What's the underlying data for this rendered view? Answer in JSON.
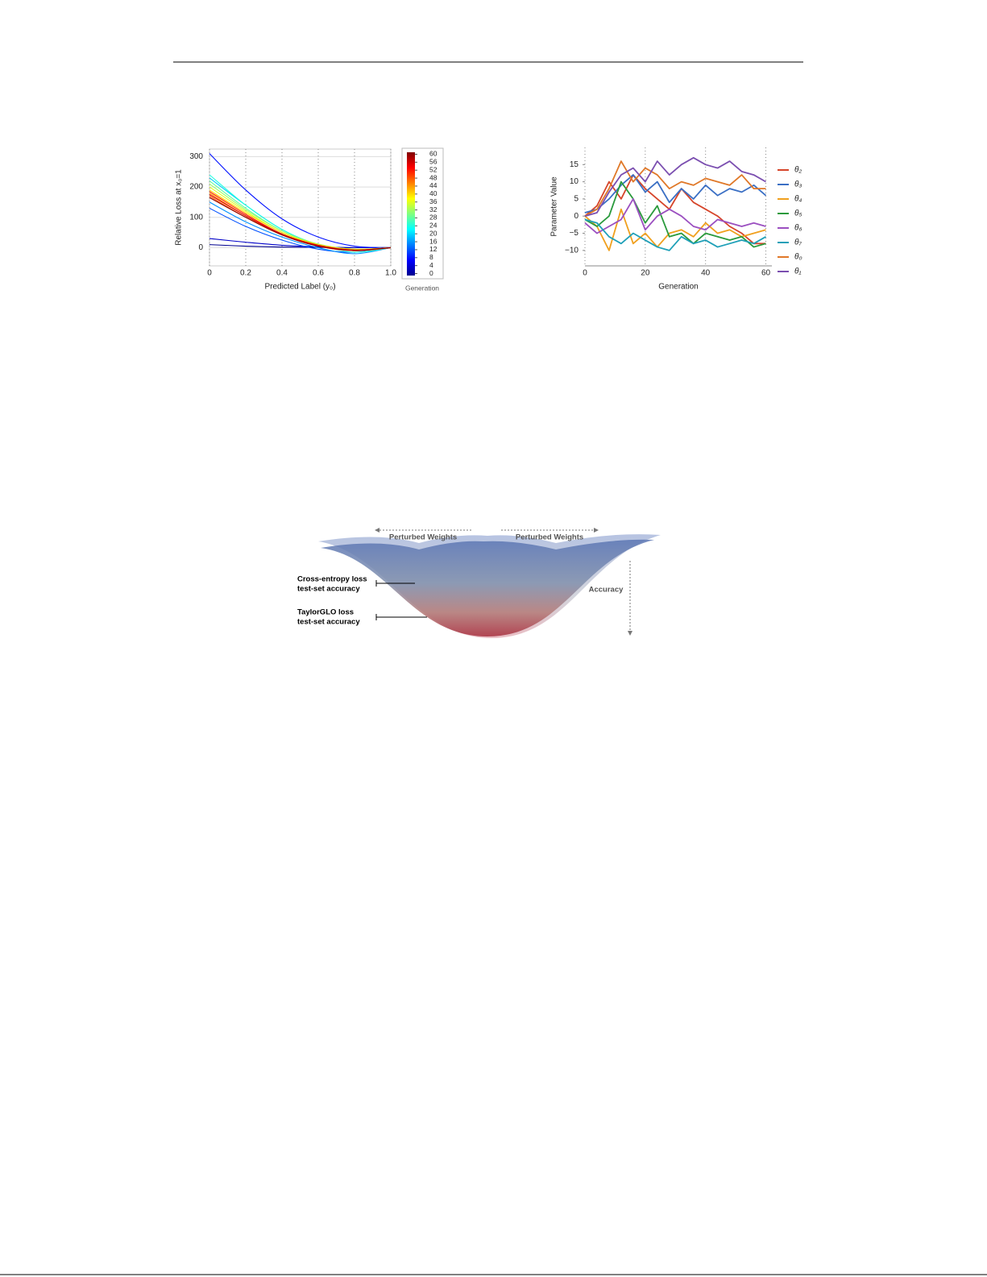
{
  "chart_data": [
    {
      "type": "line",
      "smooth": true,
      "xlabel": "Predicted Label (y₀)",
      "ylabel": "Relative Loss at x₀=1",
      "x": [
        0,
        0.2,
        0.4,
        0.6,
        0.8,
        1.0
      ],
      "xlim": [
        0,
        1.0
      ],
      "xticks": [
        0,
        0.2,
        0.4,
        0.6,
        0.8,
        {
          "value": 1.0,
          "label": "1.0"
        }
      ],
      "ylim": [
        -60,
        325
      ],
      "yticks": [
        0,
        100,
        200,
        300
      ],
      "xgrid": true,
      "ygrid": true,
      "colorbar": {
        "label": "Generation",
        "clim": [
          -1,
          61
        ],
        "ticks": [
          0,
          4,
          8,
          12,
          16,
          20,
          24,
          28,
          32,
          36,
          40,
          44,
          48,
          52,
          56,
          60
        ]
      },
      "series": [
        {
          "color": "#00008f",
          "values": [
            10,
            5,
            2,
            1,
            0,
            0
          ]
        },
        {
          "color": "#0000c8",
          "values": [
            30,
            18,
            8,
            3,
            0,
            0
          ]
        },
        {
          "color": "#0010ff",
          "values": [
            310,
            190,
            95,
            35,
            5,
            0
          ]
        },
        {
          "color": "#0050ff",
          "values": [
            130,
            70,
            25,
            -5,
            -15,
            0
          ]
        },
        {
          "color": "#0090ff",
          "values": [
            150,
            85,
            35,
            0,
            -20,
            0
          ]
        },
        {
          "color": "#00d0ff",
          "values": [
            230,
            140,
            60,
            10,
            -10,
            0
          ]
        },
        {
          "color": "#20ffdf",
          "values": [
            240,
            140,
            60,
            10,
            -15,
            0
          ]
        },
        {
          "color": "#60ff9f",
          "values": [
            220,
            130,
            55,
            10,
            -10,
            0
          ]
        },
        {
          "color": "#a0ff60",
          "values": [
            210,
            125,
            55,
            12,
            -5,
            0
          ]
        },
        {
          "color": "#dfff20",
          "values": [
            200,
            120,
            50,
            10,
            -5,
            0
          ]
        },
        {
          "color": "#ffdf00",
          "values": [
            190,
            115,
            50,
            10,
            -5,
            0
          ]
        },
        {
          "color": "#ff9f00",
          "values": [
            180,
            105,
            45,
            8,
            -8,
            0
          ]
        },
        {
          "color": "#ff6000",
          "values": [
            170,
            100,
            42,
            5,
            -10,
            0
          ]
        },
        {
          "color": "#ff2000",
          "values": [
            185,
            110,
            45,
            5,
            -10,
            0
          ]
        },
        {
          "color": "#df0000",
          "values": [
            175,
            105,
            45,
            8,
            -8,
            0
          ]
        },
        {
          "color": "#8f0000",
          "values": [
            165,
            100,
            42,
            5,
            -8,
            0
          ]
        }
      ]
    },
    {
      "type": "line",
      "smooth": false,
      "xlabel": "Generation",
      "ylabel": "Parameter Value",
      "x": [
        0,
        4,
        8,
        12,
        16,
        20,
        24,
        28,
        32,
        36,
        40,
        44,
        48,
        52,
        56,
        60
      ],
      "xlim": [
        0,
        62
      ],
      "xticks": [
        0,
        20,
        40,
        60
      ],
      "ylim": [
        -14.5,
        20
      ],
      "yticks": [
        {
          "value": -10,
          "label": "−10"
        },
        {
          "value": -5,
          "label": "−5"
        },
        0,
        5,
        10,
        15
      ],
      "xgrid": true,
      "ygrid": false,
      "series": [
        {
          "name": "θ₂",
          "color": "#d6452a",
          "values": [
            0,
            3,
            10,
            5,
            12,
            8,
            5,
            2,
            8,
            4,
            2,
            0,
            -3,
            -5,
            -8,
            -8
          ]
        },
        {
          "name": "θ₃",
          "color": "#3a6fc4",
          "values": [
            1,
            2,
            5,
            9,
            12,
            7,
            10,
            4,
            8,
            5,
            9,
            6,
            8,
            7,
            9,
            6
          ]
        },
        {
          "name": "θ₄",
          "color": "#f0a01e",
          "values": [
            0,
            -3,
            -10,
            2,
            -8,
            -5,
            -9,
            -5,
            -4,
            -6,
            -2,
            -5,
            -4,
            -6,
            -5,
            -4
          ]
        },
        {
          "name": "θ₅",
          "color": "#2a9a3c",
          "values": [
            -1,
            -3,
            0,
            10,
            5,
            -2,
            3,
            -6,
            -5,
            -8,
            -5,
            -6,
            -7,
            -6,
            -9,
            -8
          ]
        },
        {
          "name": "θ₆",
          "color": "#9b4fc0",
          "values": [
            -2,
            -5,
            -3,
            -1,
            5,
            -4,
            0,
            2,
            0,
            -3,
            -4,
            -1,
            -2,
            -3,
            -2,
            -3
          ]
        },
        {
          "name": "θ₇",
          "color": "#1fa0b8",
          "values": [
            -1,
            -2,
            -6,
            -8,
            -5,
            -7,
            -9,
            -10,
            -6,
            -8,
            -7,
            -9,
            -8,
            -7,
            -8,
            -6
          ]
        },
        {
          "name": "θ₀",
          "color": "#e07828",
          "values": [
            0,
            2,
            8,
            16,
            10,
            14,
            12,
            8,
            10,
            9,
            11,
            10,
            9,
            12,
            8,
            8
          ]
        },
        {
          "name": "θ₁",
          "color": "#7b4fb0",
          "values": [
            0,
            1,
            7,
            12,
            14,
            10,
            16,
            12,
            15,
            17,
            15,
            14,
            16,
            13,
            12,
            10
          ]
        }
      ]
    }
  ],
  "diagram": {
    "weights_left": "Perturbed Weights",
    "weights_right": "Perturbed Weights",
    "accuracy": "Accuracy",
    "ce_label": [
      "Cross-entropy loss",
      "test-set accuracy"
    ],
    "tg_label": [
      "TaylorGLO loss",
      "test-set accuracy"
    ]
  }
}
